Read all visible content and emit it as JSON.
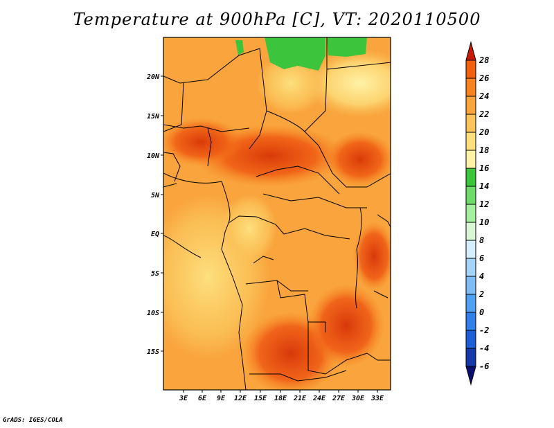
{
  "title": "Temperature at 900hPa [C], VT: 2020110500",
  "credit": "GrADS: IGES/COLA",
  "map": {
    "lat_labels": [
      "20N",
      "15N",
      "10N",
      "5N",
      "EQ",
      "5S",
      "10S",
      "15S"
    ],
    "lon_labels": [
      "3E",
      "6E",
      "9E",
      "12E",
      "15E",
      "18E",
      "21E",
      "24E",
      "27E",
      "30E",
      "33E"
    ]
  },
  "colorbar": {
    "colors": [
      "#0b0e6e",
      "#1739a8",
      "#1f5fd6",
      "#2f80e8",
      "#4fa0f0",
      "#7fbcf5",
      "#a6d4f8",
      "#d4eefd",
      "#d8f7d4",
      "#a5f0a0",
      "#6fdc6a",
      "#3cc43c",
      "#fff3a8",
      "#fde07e",
      "#fbc45a",
      "#f9a43c",
      "#f78420",
      "#f45f10",
      "#e83a08",
      "#c81a06"
    ],
    "tick_labels": [
      "-6",
      "-4",
      "-2",
      "0",
      "2",
      "4",
      "6",
      "8",
      "10",
      "12",
      "14",
      "16",
      "18",
      "20",
      "22",
      "24",
      "26",
      "28"
    ]
  }
}
